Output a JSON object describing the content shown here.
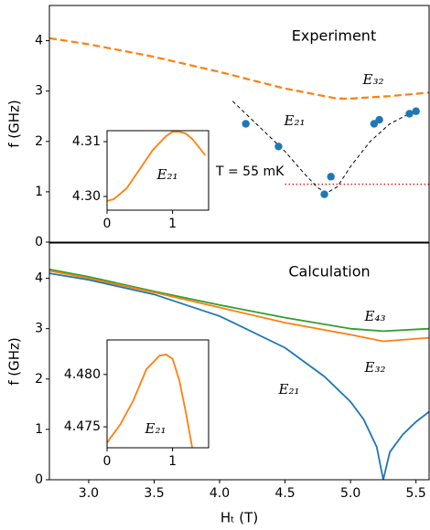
{
  "chart_data": [
    {
      "type": "line",
      "title": "Experiment",
      "ylabel": "f (GHz)",
      "xlim": [
        2.7,
        5.6
      ],
      "ylim": [
        0,
        4.7
      ],
      "yticks": [
        0,
        1,
        2,
        3,
        4
      ],
      "series": [
        {
          "name": "E₃₂",
          "color": "#ff7f0e",
          "style": "dashed",
          "x": [
            2.7,
            3.0,
            3.5,
            4.0,
            4.5,
            4.9,
            5.0,
            5.3,
            5.6
          ],
          "values": [
            4.05,
            3.93,
            3.68,
            3.38,
            3.05,
            2.85,
            2.85,
            2.9,
            2.97
          ]
        },
        {
          "name": "E₂₁",
          "color": "#000000",
          "style": "dashed",
          "x": [
            4.1,
            4.3,
            4.5,
            4.65,
            4.75,
            4.82,
            4.9,
            5.0,
            5.15,
            5.3,
            5.5
          ],
          "values": [
            2.8,
            2.3,
            1.8,
            1.35,
            1.08,
            0.98,
            1.1,
            1.5,
            2.0,
            2.35,
            2.62
          ]
        }
      ],
      "points": {
        "color": "#1f77b4",
        "x": [
          4.2,
          4.45,
          4.8,
          4.85,
          5.18,
          5.22,
          5.45,
          5.5
        ],
        "values": [
          2.35,
          1.9,
          0.95,
          1.3,
          2.35,
          2.43,
          2.55,
          2.6
        ]
      },
      "reference_line": {
        "label": "T = 55 mK",
        "color": "#e41a1c",
        "value": 1.15,
        "x": [
          4.5,
          5.6
        ]
      }
    },
    {
      "type": "line",
      "xlim": [
        0,
        1.55
      ],
      "ylim": [
        4.2975,
        4.312
      ],
      "xticks": [
        0,
        1
      ],
      "yticks": [
        {
          "value": 4.3,
          "label": "4.30"
        },
        4.31
      ],
      "series": [
        {
          "name": "E₂₁",
          "color": "#ff7f0e",
          "style": "solid",
          "x": [
            0,
            0.1,
            0.3,
            0.5,
            0.7,
            0.9,
            1.0,
            1.1,
            1.2,
            1.3,
            1.4,
            1.5
          ],
          "values": [
            4.2992,
            4.2995,
            4.3015,
            4.305,
            4.3085,
            4.311,
            4.3118,
            4.3118,
            4.3115,
            4.3105,
            4.309,
            4.3075
          ]
        }
      ]
    },
    {
      "type": "line",
      "title": "Calculation",
      "ylabel": "f (GHz)",
      "xlabel": "Hₜ (T)",
      "xlim": [
        2.7,
        5.6
      ],
      "ylim": [
        0,
        4.7
      ],
      "yticks": [
        0,
        1,
        2,
        3,
        4
      ],
      "xticks": [
        {
          "value": 3,
          "label": "3.0"
        },
        3.5,
        {
          "value": 4,
          "label": "4.0"
        },
        4.5,
        {
          "value": 5,
          "label": "5.0"
        },
        5.5
      ],
      "series": [
        {
          "name": "E₄₃",
          "color": "#2ca02c",
          "style": "solid",
          "x": [
            2.7,
            3.0,
            3.5,
            4.0,
            4.5,
            5.0,
            5.25,
            5.6
          ],
          "values": [
            4.18,
            4.03,
            3.74,
            3.47,
            3.22,
            3.0,
            2.95,
            3.0
          ]
        },
        {
          "name": "E₃₂",
          "color": "#ff7f0e",
          "style": "solid",
          "x": [
            2.7,
            3.0,
            3.5,
            4.0,
            4.5,
            5.0,
            5.25,
            5.6
          ],
          "values": [
            4.15,
            4.0,
            3.72,
            3.42,
            3.12,
            2.88,
            2.75,
            2.82
          ]
        },
        {
          "name": "E₂₁",
          "color": "#1f77b4",
          "style": "solid",
          "x": [
            2.7,
            3.0,
            3.5,
            4.0,
            4.5,
            4.8,
            5.0,
            5.1,
            5.2,
            5.25,
            5.3,
            5.4,
            5.5,
            5.6
          ],
          "values": [
            4.1,
            3.97,
            3.68,
            3.25,
            2.62,
            2.05,
            1.55,
            1.2,
            0.65,
            0,
            0.55,
            0.9,
            1.15,
            1.35
          ]
        }
      ]
    },
    {
      "type": "line",
      "xlim": [
        0,
        1.55
      ],
      "ylim": [
        4.473,
        4.4833
      ],
      "xticks": [
        0,
        1
      ],
      "yticks": [
        4.475,
        {
          "value": 4.48,
          "label": "4.480"
        }
      ],
      "series": [
        {
          "name": "E₂₁",
          "color": "#ff7f0e",
          "style": "solid",
          "x": [
            0,
            0.2,
            0.4,
            0.6,
            0.8,
            0.9,
            1.0,
            1.1,
            1.2,
            1.3
          ],
          "values": [
            4.4735,
            4.4752,
            4.4775,
            4.4805,
            4.4818,
            4.4819,
            4.4815,
            4.4795,
            4.4765,
            4.473
          ]
        }
      ]
    }
  ]
}
